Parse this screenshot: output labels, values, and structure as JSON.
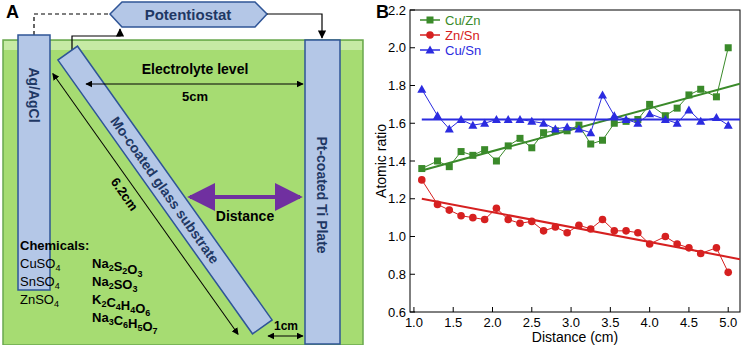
{
  "panels": [
    "A",
    "B"
  ],
  "diagram": {
    "potentiostat": "Potentiostat",
    "reference_electrode": "Ag/AgCl",
    "substrate": "Mo-coated glass substrate",
    "counter_electrode": "Pt-coated Ti Plate",
    "electrolyte_level": "Electrolyte level",
    "width_label": "5cm",
    "length_label": "6.2cm",
    "gap_label": "1cm",
    "distance_label": "Distance",
    "chemicals_title": "Chemicals:",
    "chemicals_left": [
      "CuSO4",
      "SnSO4",
      "ZnSO4"
    ],
    "chemicals_right": [
      "Na2S2O3",
      "Na2SO3",
      "K2C4H4O6",
      "Na3C6H5O7"
    ]
  },
  "chart_data": {
    "type": "line",
    "x_label": "Distance (cm)",
    "y_label": "Atomic ratio",
    "x": [
      1.1,
      1.3,
      1.45,
      1.6,
      1.75,
      1.9,
      2.05,
      2.2,
      2.35,
      2.5,
      2.65,
      2.8,
      2.95,
      3.1,
      3.25,
      3.4,
      3.55,
      3.7,
      3.85,
      4.0,
      4.2,
      4.35,
      4.5,
      4.65,
      4.85,
      5.0
    ],
    "trend_x": [
      1.1,
      5.15
    ],
    "series": [
      {
        "name": "Cu/Zn",
        "color": "#3a8a2a",
        "marker": "square",
        "values": [
          1.36,
          1.4,
          1.37,
          1.45,
          1.43,
          1.46,
          1.4,
          1.48,
          1.52,
          1.47,
          1.55,
          1.56,
          1.56,
          1.59,
          1.49,
          1.51,
          1.6,
          1.61,
          1.62,
          1.7,
          1.64,
          1.68,
          1.75,
          1.78,
          1.74,
          2.0
        ],
        "trend": [
          1.35,
          1.81
        ]
      },
      {
        "name": "Zn/Sn",
        "color": "#d62020",
        "marker": "circle",
        "values": [
          1.3,
          1.17,
          1.14,
          1.11,
          1.1,
          1.09,
          1.15,
          1.09,
          1.07,
          1.08,
          1.03,
          1.05,
          1.02,
          1.06,
          1.04,
          1.09,
          1.03,
          1.03,
          1.02,
          0.96,
          1.0,
          0.96,
          0.94,
          0.91,
          0.94,
          0.81
        ],
        "trend": [
          1.2,
          0.88
        ]
      },
      {
        "name": "Cu/Sn",
        "color": "#2b2be0",
        "marker": "triangle",
        "values": [
          1.78,
          1.64,
          1.57,
          1.62,
          1.59,
          1.6,
          1.62,
          1.62,
          1.62,
          1.61,
          1.6,
          1.57,
          1.58,
          1.57,
          1.55,
          1.75,
          1.64,
          1.62,
          1.6,
          1.65,
          1.62,
          1.6,
          1.67,
          1.61,
          1.63,
          1.59
        ],
        "trend": [
          1.62,
          1.62
        ]
      }
    ],
    "xlim": [
      0.95,
      5.15
    ],
    "ylim": [
      0.6,
      2.2
    ],
    "xticks": [
      {
        "value": 1,
        "label": "1.0"
      },
      1.5,
      {
        "value": 2,
        "label": "2.0"
      },
      2.5,
      {
        "value": 3,
        "label": "3.0"
      },
      3.5,
      {
        "value": 4,
        "label": "4.0"
      },
      4.5,
      {
        "value": 5,
        "label": "5.0"
      }
    ],
    "yticks": [
      0.6,
      0.8,
      {
        "value": 1,
        "label": "1.0"
      },
      1.2,
      1.4,
      1.6,
      1.8,
      {
        "value": 2,
        "label": "2.0"
      },
      2.2
    ],
    "legend": "top-left",
    "grid": false
  }
}
